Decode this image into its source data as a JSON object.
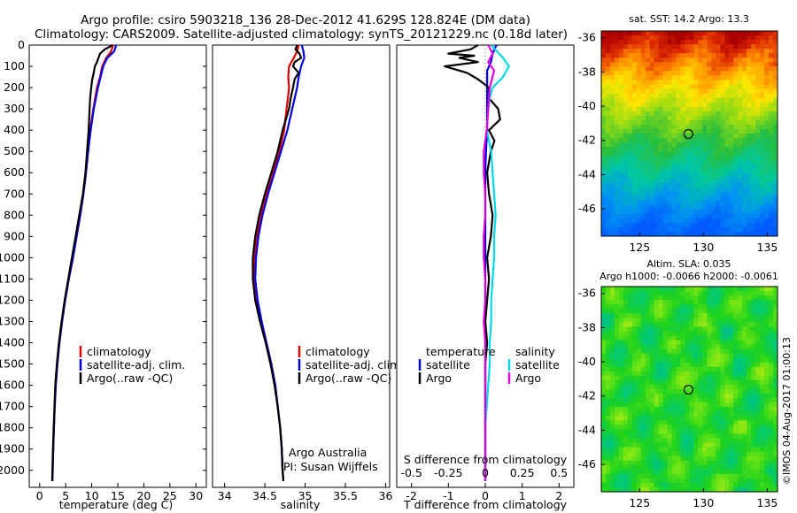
{
  "header": {
    "title_line1": "Argo profile: csiro 5903218_136 28-Dec-2012 41.629S 128.824E (DM data)",
    "title_line2": "Climatology: CARS2009. Satellite-adjusted climatology: synTS_20121229.nc (0.18d later)"
  },
  "colors": {
    "climatology": "#e00000",
    "satellite": "#0000e0",
    "argo": "#000000",
    "salinity_satellite": "#00d8e8",
    "salinity_argo": "#e000e0"
  },
  "chart_data": [
    {
      "type": "line",
      "name": "temperature-profile",
      "xlabel": "temperature (deg C)",
      "ylabel": "",
      "xlim": [
        -2,
        32
      ],
      "ylim": [
        2080,
        0
      ],
      "xticks": [
        0,
        5,
        10,
        15,
        20,
        25,
        30
      ],
      "yticks": [
        0,
        100,
        200,
        300,
        400,
        500,
        600,
        700,
        800,
        900,
        1000,
        1100,
        1200,
        1300,
        1400,
        1500,
        1600,
        1700,
        1800,
        1900,
        2000
      ],
      "legend": [
        "climatology",
        "satellite-adj. clim.",
        "Argo(..raw -QC)"
      ],
      "series": [
        {
          "name": "climatology",
          "color": "#e00000",
          "depth": [
            0,
            30,
            60,
            100,
            150,
            200,
            300,
            400,
            500,
            600,
            700,
            800,
            900,
            1000,
            1100,
            1200,
            1300,
            1400,
            1500,
            1600,
            1700,
            1800,
            1900,
            2000,
            2050
          ],
          "values": [
            14.1,
            13.7,
            12.8,
            12.0,
            11.6,
            11.0,
            10.3,
            9.7,
            9.3,
            8.9,
            8.4,
            7.8,
            7.1,
            6.4,
            5.6,
            4.9,
            4.3,
            3.8,
            3.4,
            3.1,
            2.9,
            2.75,
            2.6,
            2.5,
            2.45
          ]
        },
        {
          "name": "satellite-adj. clim.",
          "color": "#0000e0",
          "depth": [
            0,
            30,
            60,
            100,
            150,
            200,
            300,
            400,
            500,
            600,
            700,
            800,
            900,
            1000,
            1100,
            1200,
            1300,
            1400,
            1500,
            1600,
            1700,
            1800,
            1900,
            2000,
            2050
          ],
          "values": [
            14.7,
            14.3,
            13.0,
            12.2,
            11.7,
            11.2,
            10.4,
            9.8,
            9.3,
            8.9,
            8.4,
            7.8,
            7.1,
            6.4,
            5.6,
            4.9,
            4.3,
            3.8,
            3.4,
            3.1,
            2.9,
            2.75,
            2.6,
            2.5,
            2.45
          ]
        },
        {
          "name": "Argo(..raw -QC)",
          "color": "#000000",
          "depth": [
            0,
            20,
            40,
            60,
            80,
            100,
            130,
            160,
            200,
            250,
            300,
            400,
            500,
            600,
            700,
            800,
            900,
            1000,
            1100,
            1200,
            1300,
            1400,
            1500,
            1600,
            1700,
            1800,
            1900,
            2000,
            2050
          ],
          "values": [
            14.0,
            12.5,
            11.6,
            11.3,
            11.0,
            10.6,
            10.4,
            10.1,
            9.9,
            9.7,
            9.6,
            9.4,
            9.1,
            8.8,
            8.3,
            7.6,
            6.9,
            6.2,
            5.5,
            4.8,
            4.2,
            3.7,
            3.3,
            3.0,
            2.85,
            2.7,
            2.55,
            2.45,
            2.4
          ]
        }
      ]
    },
    {
      "type": "line",
      "name": "salinity-profile",
      "xlabel": "salinity",
      "xlim": [
        33.85,
        36.05
      ],
      "ylim": [
        2080,
        0
      ],
      "xticks": [
        34,
        34.5,
        35,
        35.5,
        36
      ],
      "xticklabels": [
        "34",
        "34.5",
        "35",
        "35.5",
        "36"
      ],
      "legend": [
        "climatology",
        "satellite-adj. clim.",
        "Argo(..raw -QC)"
      ],
      "annotation": [
        "Argo Australia",
        "PI: Susan Wijffels"
      ],
      "series": [
        {
          "name": "climatology",
          "color": "#e00000",
          "depth": [
            0,
            30,
            60,
            100,
            150,
            200,
            300,
            400,
            500,
            600,
            700,
            800,
            900,
            1000,
            1100,
            1200,
            1300,
            1400,
            1500,
            1600,
            1700,
            1800,
            1900,
            2000,
            2050
          ],
          "values": [
            34.92,
            34.9,
            34.86,
            34.8,
            34.79,
            34.8,
            34.77,
            34.74,
            34.68,
            34.6,
            34.52,
            34.45,
            34.4,
            34.37,
            34.37,
            34.4,
            34.45,
            34.52,
            34.58,
            34.63,
            34.66,
            34.69,
            34.71,
            34.72,
            34.73
          ]
        },
        {
          "name": "satellite-adj. clim.",
          "color": "#0000e0",
          "depth": [
            0,
            30,
            60,
            100,
            150,
            200,
            300,
            400,
            500,
            600,
            700,
            800,
            900,
            1000,
            1100,
            1200,
            1300,
            1400,
            1500,
            1600,
            1700,
            1800,
            1900,
            2000,
            2050
          ],
          "values": [
            34.96,
            34.98,
            34.99,
            34.95,
            34.92,
            34.9,
            34.84,
            34.78,
            34.7,
            34.62,
            34.54,
            34.47,
            34.42,
            34.39,
            34.38,
            34.41,
            34.46,
            34.52,
            34.58,
            34.63,
            34.66,
            34.69,
            34.71,
            34.72,
            34.73
          ]
        },
        {
          "name": "Argo(..raw -QC)",
          "color": "#000000",
          "depth": [
            0,
            20,
            40,
            60,
            80,
            100,
            130,
            160,
            200,
            250,
            300,
            400,
            500,
            600,
            700,
            800,
            900,
            1000,
            1100,
            1200,
            1300,
            1400,
            1500,
            1600,
            1700,
            1800,
            1900,
            2000,
            2050
          ],
          "values": [
            34.9,
            34.88,
            34.93,
            34.95,
            34.87,
            34.85,
            34.92,
            34.87,
            34.85,
            34.82,
            34.8,
            34.72,
            34.66,
            34.58,
            34.5,
            34.43,
            34.38,
            34.35,
            34.35,
            34.38,
            34.44,
            34.51,
            34.57,
            34.62,
            34.66,
            34.69,
            34.71,
            34.72,
            34.73
          ]
        }
      ]
    },
    {
      "type": "line",
      "name": "difference-profile",
      "xlabel": "T difference from climatology",
      "xlabel_top": "S difference from climatology",
      "xlim": [
        -2.4,
        2.4
      ],
      "ylim": [
        2080,
        0
      ],
      "xticks": [
        -2,
        -1,
        0,
        1,
        2
      ],
      "xticklabels": [
        "-2",
        "-1",
        "0",
        "1",
        "2"
      ],
      "top_xticks": [
        -0.5,
        -0.25,
        0,
        0.25,
        0.5
      ],
      "top_xticklabels": [
        "-0.5",
        "-0.25",
        "0",
        "0.25",
        "0.5"
      ],
      "legend_titles": [
        "temperature",
        "salinity"
      ],
      "legend": [
        "satellite",
        "Argo",
        "satellite",
        "Argo"
      ],
      "series": [
        {
          "name": "temperature satellite",
          "color": "#0000e0",
          "depth": [
            0,
            40,
            80,
            120,
            200,
            300,
            400,
            500,
            600,
            800,
            1000,
            1200,
            1500,
            1800,
            2050
          ],
          "values": [
            0.3,
            0.2,
            0.15,
            0.05,
            0.05,
            0.05,
            0.05,
            0.02,
            0,
            0,
            0,
            0,
            0,
            0,
            0
          ]
        },
        {
          "name": "temperature Argo",
          "color": "#000000",
          "depth": [
            0,
            20,
            40,
            50,
            60,
            80,
            100,
            130,
            160,
            200,
            250,
            300,
            350,
            400,
            450,
            500,
            600,
            700,
            800,
            900,
            1000,
            1100,
            1200,
            1300,
            1400,
            1500,
            1600,
            1800,
            2000,
            2050
          ],
          "values": [
            -0.2,
            -0.4,
            -1.0,
            -0.3,
            -0.7,
            -0.2,
            -1.1,
            -0.5,
            -0.2,
            0.1,
            0.1,
            0.35,
            0.4,
            0.1,
            0.25,
            0.15,
            0.05,
            0.1,
            0.2,
            0.15,
            0.05,
            0.1,
            0.05,
            0.0,
            0.05,
            0.0,
            0.0,
            0.0,
            0.0,
            0.0
          ]
        },
        {
          "name": "salinity satellite",
          "color": "#00d8e8",
          "depth": [
            0,
            30,
            60,
            100,
            150,
            200,
            250,
            300,
            400,
            500,
            600,
            700,
            800,
            900,
            1000,
            1100,
            1200,
            1300,
            1400,
            1500,
            1600,
            1700,
            1800,
            2000,
            2050
          ],
          "values": [
            0.04,
            0.08,
            0.12,
            0.16,
            0.12,
            0.05,
            0.03,
            0.02,
            0.01,
            0.04,
            0.05,
            0.06,
            0.07,
            0.06,
            0.06,
            0.05,
            0.04,
            0.04,
            0.03,
            0.03,
            0.02,
            0.01,
            0.0,
            0.0,
            0.0
          ]
        },
        {
          "name": "salinity Argo",
          "color": "#e000e0",
          "depth": [
            0,
            40,
            80,
            120,
            200,
            300,
            400,
            500,
            600,
            700,
            800,
            900,
            1000,
            1100,
            1200,
            1300,
            1400,
            1500,
            1600,
            1700,
            1800,
            2000,
            2050
          ],
          "values": [
            0.02,
            0.05,
            0.02,
            0.06,
            0.03,
            0.02,
            0.01,
            -0.01,
            -0.01,
            0.0,
            0.0,
            -0.01,
            -0.01,
            0.0,
            0.0,
            -0.01,
            0.0,
            0.0,
            0.0,
            0.0,
            0.0,
            0.0,
            0.0
          ]
        }
      ]
    },
    {
      "type": "heatmap",
      "name": "sst-map",
      "title": "sat. SST: 14.2  Argo: 13.3",
      "xlim": [
        122,
        135.8
      ],
      "ylim": [
        -47.6,
        -35.6
      ],
      "xticks": [
        125,
        130,
        135
      ],
      "yticks": [
        -36,
        -38,
        -40,
        -42,
        -44,
        -46
      ],
      "xticklabels": [
        "125",
        "130",
        "135"
      ],
      "yticklabels": [
        "-36",
        "-38",
        "-40",
        "-42",
        "-44",
        "-46"
      ],
      "marker": {
        "lon": 128.824,
        "lat": -41.629
      }
    },
    {
      "type": "heatmap",
      "name": "sla-map",
      "title_line1": "Altim. SLA: 0.035",
      "title_line2": "Argo h1000: -0.0066 h2000: -0.0061",
      "xlim": [
        122,
        135.8
      ],
      "ylim": [
        -47.6,
        -35.6
      ],
      "xticks": [
        125,
        130,
        135
      ],
      "yticks": [
        -36,
        -38,
        -40,
        -42,
        -44,
        -46
      ],
      "xticklabels": [
        "125",
        "130",
        "135"
      ],
      "yticklabels": [
        "-36",
        "-38",
        "-40",
        "-42",
        "-44",
        "-46"
      ],
      "marker": {
        "lon": 128.824,
        "lat": -41.629
      },
      "side_label": "©IMOS 04-Aug-2017 01:00:13"
    }
  ]
}
